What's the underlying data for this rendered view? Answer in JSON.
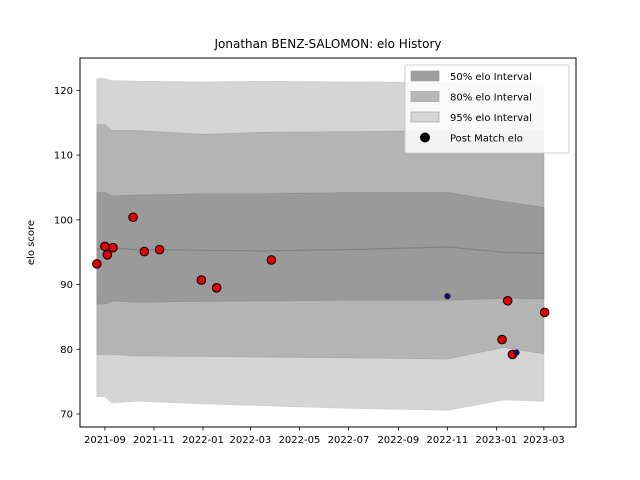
{
  "chart_data": {
    "type": "scatter",
    "title": "Jonathan BENZ-SALOMON: elo History",
    "xlabel": "",
    "ylabel": "elo score",
    "xlim": [
      "2021-08-01",
      "2023-04-10"
    ],
    "ylim": [
      68,
      125
    ],
    "x_ticks": [
      "2021-09",
      "2021-11",
      "2022-01",
      "2022-03",
      "2022-05",
      "2022-07",
      "2022-09",
      "2022-11",
      "2023-01",
      "2023-03"
    ],
    "y_ticks": [
      70,
      80,
      90,
      100,
      110,
      120
    ],
    "grid": false,
    "legend_position": "top-right",
    "legend": [
      {
        "label": "50% elo Interval",
        "kind": "band",
        "color": "#9e9e9e"
      },
      {
        "label": "80% elo Interval",
        "kind": "band",
        "color": "#b8b8b8"
      },
      {
        "label": "95% elo Interval",
        "kind": "band",
        "color": "#d6d6d6"
      },
      {
        "label": "Post Match elo",
        "kind": "marker",
        "color": "#000000"
      }
    ],
    "colors": {
      "band50": "#9a9a9a",
      "band80": "#b4b4b4",
      "band95": "#d5d5d5",
      "mean_line": "#808080",
      "point_fill": "#e00000",
      "point_edge": "#000000",
      "other_point": "#101060"
    },
    "bands": {
      "dates": [
        "2021-08-22",
        "2021-09-01",
        "2021-09-10",
        "2021-10-10",
        "2022-01-01",
        "2022-03-15",
        "2022-07-01",
        "2022-11-01",
        "2023-01-10",
        "2023-03-01"
      ],
      "mean": [
        95.5,
        95.6,
        95.7,
        95.4,
        95.3,
        95.2,
        95.4,
        95.8,
        95.0,
        94.8
      ],
      "q50_upper": [
        104.2,
        104.2,
        103.7,
        103.8,
        104.0,
        104.0,
        104.2,
        104.2,
        102.8,
        101.9
      ],
      "q50_lower": [
        87.0,
        87.0,
        87.5,
        87.3,
        87.4,
        87.5,
        87.6,
        87.6,
        87.9,
        87.8
      ],
      "q80_upper": [
        114.7,
        114.7,
        113.8,
        113.8,
        113.2,
        113.5,
        113.6,
        113.8,
        113.5,
        113.8
      ],
      "q80_lower": [
        79.2,
        79.2,
        79.2,
        79.0,
        78.9,
        78.8,
        78.7,
        78.5,
        80.3,
        79.3
      ],
      "q95_upper": [
        121.8,
        121.8,
        121.5,
        121.4,
        121.3,
        121.4,
        121.3,
        121.2,
        121.1,
        121.0
      ],
      "q95_lower": [
        72.7,
        72.7,
        71.7,
        72.0,
        71.6,
        71.3,
        70.9,
        70.6,
        72.2,
        72.0
      ]
    },
    "series": [
      {
        "name": "Post Match elo",
        "x": [
          "2021-08-22",
          "2021-09-01",
          "2021-09-04",
          "2021-09-11",
          "2021-10-06",
          "2021-10-20",
          "2021-11-08",
          "2021-12-30",
          "2022-01-18",
          "2022-03-27",
          "2023-01-08",
          "2023-01-15",
          "2023-01-21",
          "2023-03-02"
        ],
        "y": [
          93.2,
          95.9,
          94.6,
          95.7,
          100.4,
          95.1,
          95.4,
          90.7,
          89.5,
          93.8,
          81.5,
          87.5,
          79.2,
          85.7
        ]
      },
      {
        "name": "",
        "x": [
          "2022-11-01",
          "2023-01-26"
        ],
        "y": [
          88.2,
          79.5
        ]
      }
    ]
  }
}
